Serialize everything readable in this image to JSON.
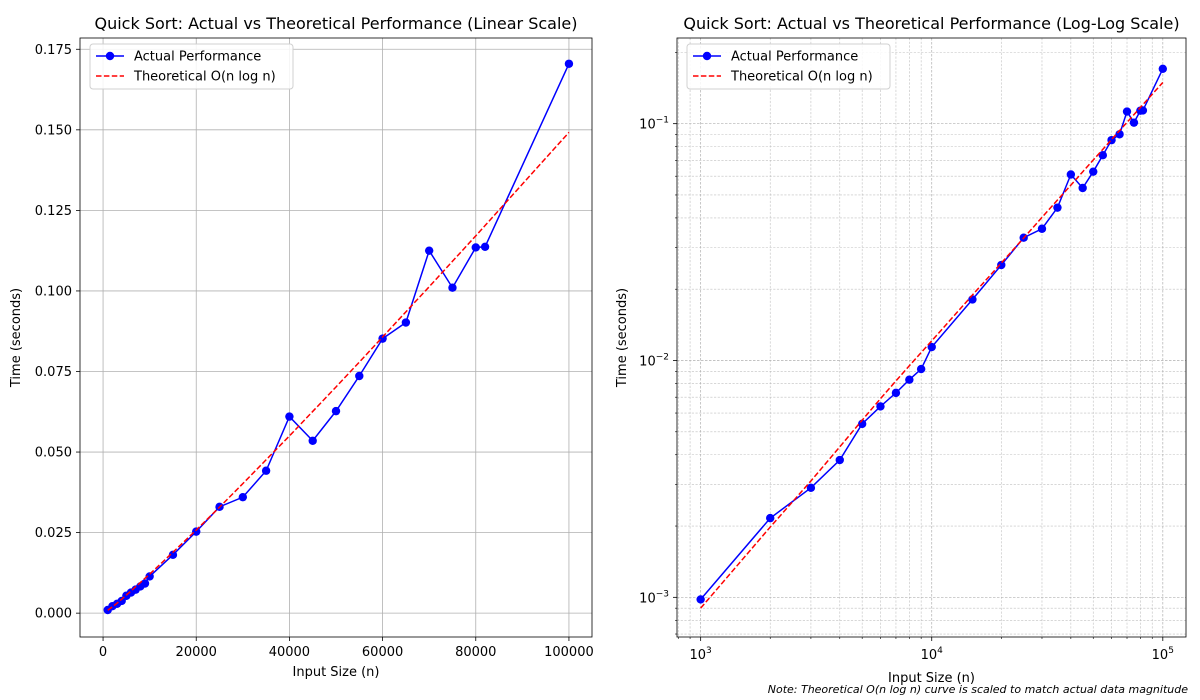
{
  "chart_data": [
    {
      "type": "line",
      "title": "Quick Sort: Actual vs Theoretical Performance (Linear Scale)",
      "xlabel": "Input Size (n)",
      "ylabel": "Time (seconds)",
      "xscale": "linear",
      "yscale": "linear",
      "xlim": [
        -4950,
        104950
      ],
      "ylim": [
        -0.0074,
        0.1785
      ],
      "xticks": [
        0,
        20000,
        40000,
        60000,
        80000,
        100000
      ],
      "xtick_labels": [
        "0",
        "20000",
        "40000",
        "60000",
        "80000",
        "100000"
      ],
      "yticks": [
        0.0,
        0.025,
        0.05,
        0.075,
        0.1,
        0.125,
        0.15,
        0.175
      ],
      "ytick_labels": [
        "0.000",
        "0.025",
        "0.050",
        "0.075",
        "0.100",
        "0.125",
        "0.150",
        "0.175"
      ],
      "grid": "major",
      "legend": "top-left",
      "x": [
        1000,
        2000,
        3000,
        4000,
        5000,
        6000,
        7000,
        8000,
        9000,
        10000,
        15000,
        20000,
        25000,
        30000,
        35000,
        40000,
        45000,
        50000,
        55000,
        60000,
        65000,
        70000,
        75000,
        80000,
        82000,
        100000
      ],
      "series": [
        {
          "name": "Actual Performance",
          "style": "solid-marker",
          "color": "#0000ff",
          "values": [
            0.00098,
            0.00216,
            0.0029,
            0.0038,
            0.0054,
            0.0064,
            0.0073,
            0.0083,
            0.0092,
            0.0114,
            0.0181,
            0.0253,
            0.033,
            0.036,
            0.0442,
            0.061,
            0.0535,
            0.0627,
            0.0736,
            0.0852,
            0.0902,
            0.1125,
            0.101,
            0.1135,
            0.1137,
            0.1705
          ]
        },
        {
          "name": "Theoretical O(n log n)",
          "style": "dashed",
          "color": "#ff0000",
          "values": [
            0.0009,
            0.00198,
            0.0031,
            0.00432,
            0.0056,
            0.0069,
            0.0082,
            0.0095,
            0.0108,
            0.0121,
            0.0189,
            0.0258,
            0.0329,
            0.0402,
            0.0476,
            0.055,
            0.0626,
            0.0702,
            0.0779,
            0.0857,
            0.0935,
            0.1013,
            0.1092,
            0.1171,
            0.1203,
            0.1492
          ]
        }
      ]
    },
    {
      "type": "line",
      "title": "Quick Sort: Actual vs Theoretical Performance (Log-Log Scale)",
      "xlabel": "Input Size (n)",
      "ylabel": "Time (seconds)",
      "xscale": "log",
      "yscale": "log",
      "xlim": [
        790,
        126000
      ],
      "ylim": [
        0.00068,
        0.23
      ],
      "xticks": [
        1000,
        10000,
        100000
      ],
      "xtick_labels": [
        [
          "10",
          "3"
        ],
        [
          "10",
          "4"
        ],
        [
          "10",
          "5"
        ]
      ],
      "yticks": [
        0.001,
        0.01,
        0.1
      ],
      "ytick_labels": [
        [
          "10",
          "−3"
        ],
        [
          "10",
          "−2"
        ],
        [
          "10",
          "−1"
        ]
      ],
      "grid": "major-and-minor",
      "legend": "top-left",
      "x": [
        1000,
        2000,
        3000,
        4000,
        5000,
        6000,
        7000,
        8000,
        9000,
        10000,
        15000,
        20000,
        25000,
        30000,
        35000,
        40000,
        45000,
        50000,
        55000,
        60000,
        65000,
        70000,
        75000,
        80000,
        82000,
        100000
      ],
      "series": [
        {
          "name": "Actual Performance",
          "style": "solid-marker",
          "color": "#0000ff",
          "values": [
            0.00098,
            0.00216,
            0.0029,
            0.0038,
            0.0054,
            0.0064,
            0.0073,
            0.0083,
            0.0092,
            0.0114,
            0.0181,
            0.0253,
            0.033,
            0.036,
            0.0442,
            0.061,
            0.0535,
            0.0627,
            0.0736,
            0.0852,
            0.0902,
            0.1125,
            0.101,
            0.1135,
            0.1137,
            0.1705
          ]
        },
        {
          "name": "Theoretical O(n log n)",
          "style": "dashed",
          "color": "#ff0000",
          "values": [
            0.0009,
            0.00198,
            0.0031,
            0.00432,
            0.0056,
            0.0069,
            0.0082,
            0.0095,
            0.0108,
            0.0121,
            0.0189,
            0.0258,
            0.0329,
            0.0402,
            0.0476,
            0.055,
            0.0626,
            0.0702,
            0.0779,
            0.0857,
            0.0935,
            0.1013,
            0.1092,
            0.1171,
            0.1203,
            0.1492
          ]
        }
      ]
    }
  ],
  "note": "Note: Theoretical O(n log n) curve is scaled to match actual data magnitude"
}
